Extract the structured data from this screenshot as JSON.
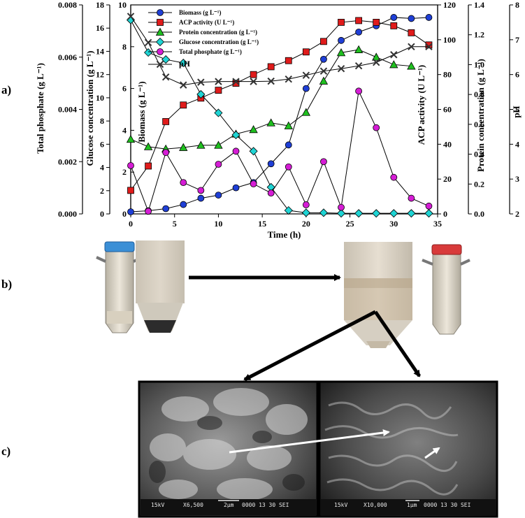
{
  "panels": {
    "a": "a)",
    "b": "b)",
    "c": "c)"
  },
  "chart_data": {
    "type": "line",
    "xlabel": "Time (h)",
    "xlim": [
      0,
      35
    ],
    "xticks": [
      0,
      5,
      10,
      15,
      20,
      25,
      30,
      35
    ],
    "axes": {
      "phosphate": {
        "label": "Total phosphate (g L⁻¹)",
        "lim": [
          0,
          0.008
        ],
        "ticks": [
          "0.000",
          "0.002",
          "0.004",
          "0.006",
          "0.008"
        ]
      },
      "glucose": {
        "label": "Glucose concentration (g L⁻¹)",
        "lim": [
          0,
          18
        ],
        "ticks": [
          "0",
          "2",
          "4",
          "6",
          "8",
          "10",
          "12",
          "14",
          "16",
          "18"
        ]
      },
      "biomass": {
        "label": "Biomass (g L⁻¹)",
        "lim": [
          0,
          10
        ],
        "ticks": [
          "0",
          "2",
          "4",
          "6",
          "8",
          "10"
        ]
      },
      "acp": {
        "label": "ACP activity (U L⁻¹)",
        "lim": [
          0,
          120
        ],
        "ticks": [
          "0",
          "20",
          "40",
          "60",
          "80",
          "100",
          "120"
        ]
      },
      "protein": {
        "label": "Protein concentration (g L⁻¹)",
        "lim": [
          0,
          1.4
        ],
        "ticks": [
          "0.0",
          "0.2",
          "0.4",
          "0.6",
          "0.8",
          "1.0",
          "1.2",
          "1.4"
        ]
      },
      "ph": {
        "label": "pH",
        "lim": [
          2,
          8
        ],
        "ticks": [
          "2",
          "3",
          "4",
          "5",
          "6",
          "7",
          "8"
        ]
      }
    },
    "series": [
      {
        "name": "Biomass (g L⁻¹)",
        "axis": "biomass",
        "marker": "circle",
        "color": "#1f3fd6",
        "x": [
          0,
          2,
          4,
          6,
          8,
          10,
          12,
          14,
          16,
          18,
          20,
          22,
          24,
          26,
          28,
          30,
          32,
          34
        ],
        "y": [
          0.1,
          0.15,
          0.25,
          0.45,
          0.75,
          0.9,
          1.25,
          1.5,
          2.4,
          3.3,
          6.0,
          7.4,
          8.3,
          8.7,
          9.0,
          9.4,
          9.35,
          9.4
        ]
      },
      {
        "name": "ACP activity (U L⁻¹)",
        "axis": "acp",
        "marker": "square",
        "color": "#e01b1b",
        "x": [
          0,
          2,
          4,
          6,
          8,
          10,
          12,
          14,
          16,
          18,
          20,
          22,
          24,
          26,
          28,
          30,
          32,
          34
        ],
        "y": [
          13.5,
          27.5,
          53,
          62.5,
          66.5,
          71,
          75,
          80,
          84.5,
          88,
          93,
          99,
          110,
          111,
          110,
          108,
          104,
          97
        ]
      },
      {
        "name": "Protein concentration (g L⁻¹)",
        "axis": "protein",
        "marker": "triangle",
        "color": "#1fbf1f",
        "x": [
          0,
          2,
          4,
          6,
          8,
          10,
          12,
          14,
          16,
          18,
          20,
          22,
          24,
          26,
          28,
          30,
          32
        ],
        "y": [
          0.5,
          0.45,
          0.435,
          0.445,
          0.46,
          0.46,
          0.535,
          0.565,
          0.61,
          0.59,
          0.68,
          0.89,
          1.08,
          1.1,
          1.05,
          1.0,
          0.99
        ]
      },
      {
        "name": "Glucose concentration (g L⁻¹)",
        "axis": "glucose",
        "marker": "diamond",
        "color": "#1fd4d4",
        "x": [
          0,
          2,
          4,
          6,
          8,
          10,
          12,
          14,
          16,
          18,
          20,
          22,
          24,
          26,
          28,
          30,
          32,
          34
        ],
        "y": [
          16.7,
          13.9,
          13.3,
          13.0,
          10.3,
          8.7,
          6.8,
          5.4,
          2.3,
          0.3,
          0.1,
          0.1,
          0.05,
          0.05,
          0.05,
          0.05,
          0.05,
          0.05
        ]
      },
      {
        "name": "Total phosphate (g L⁻¹)",
        "axis": "phosphate",
        "marker": "circle",
        "color": "#d51dd5",
        "x": [
          0,
          2,
          4,
          6,
          8,
          10,
          12,
          14,
          16,
          18,
          20,
          22,
          24,
          26,
          28,
          30,
          32,
          34
        ],
        "y": [
          0.00185,
          0.0001,
          0.00235,
          0.0012,
          0.0009,
          0.0019,
          0.0024,
          0.00115,
          0.0008,
          0.0018,
          0.00035,
          0.002,
          0.00025,
          0.0047,
          0.0033,
          0.0014,
          0.0006,
          0.0003
        ]
      },
      {
        "name": "pH",
        "axis": "ph",
        "marker": "x",
        "color": "#333333",
        "x": [
          0,
          2,
          4,
          6,
          8,
          10,
          12,
          14,
          16,
          18,
          20,
          22,
          24,
          26,
          28,
          30,
          32,
          34
        ],
        "y": [
          7.67,
          6.92,
          5.93,
          5.7,
          5.78,
          5.8,
          5.8,
          5.8,
          5.81,
          5.87,
          5.98,
          6.1,
          6.17,
          6.25,
          6.35,
          6.57,
          6.8,
          6.8
        ]
      }
    ]
  },
  "sem": {
    "left": {
      "kv": "15kV",
      "mag": "X6,500",
      "scale": "2µm",
      "info": "0000 13 30 SEI"
    },
    "right": {
      "kv": "15kV",
      "mag": "X10,000",
      "scale": "1µm",
      "info": "0000 13 30 SEI"
    }
  },
  "colors": {
    "frame": "#000000",
    "arrow": "#000000",
    "sem_arrow": "#ffffff"
  }
}
